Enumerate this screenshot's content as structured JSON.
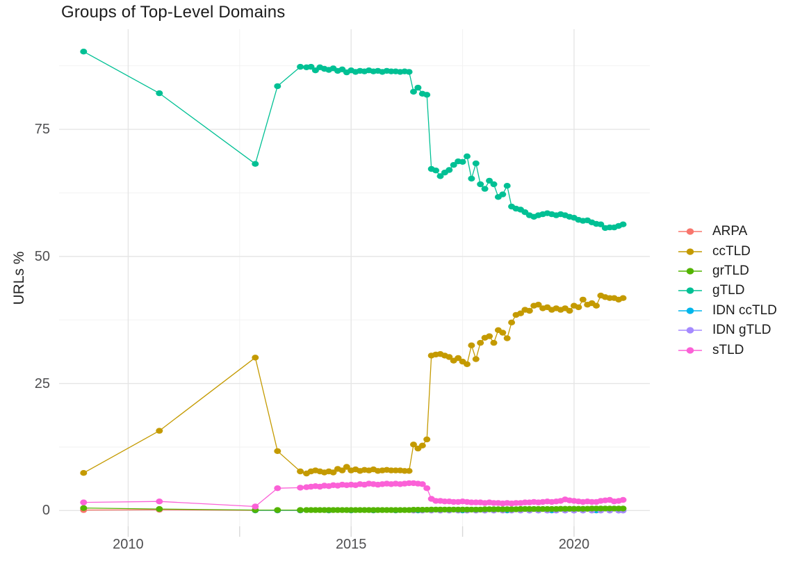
{
  "chart_data": {
    "type": "scatter",
    "title": "Groups of Top-Level Domains",
    "xlabel": "",
    "ylabel": "URLs %",
    "grid": true,
    "legend_position": "right",
    "x_ticks": [
      "2010",
      "2015",
      "2020"
    ],
    "x_tick_values": [
      2010,
      2015,
      2020
    ],
    "x_minor_tick_values": [
      2012.5,
      2017.5
    ],
    "y_ticks": [
      "0",
      "25",
      "50",
      "75"
    ],
    "y_tick_values": [
      0,
      25,
      50,
      75
    ],
    "y_minor_tick_values": [
      12.5,
      37.5,
      62.5,
      87.5
    ],
    "x_range": [
      2008.45,
      2021.7
    ],
    "y_range": [
      -3.1,
      94.7
    ],
    "draw_order": [
      "ARPA",
      "IDN ccTLD",
      "IDN gTLD",
      "ccTLD",
      "grTLD",
      "gTLD",
      "sTLD"
    ],
    "x_dense": [
      2009.0,
      2010.7,
      2012.85,
      2013.35,
      2013.86,
      2014.0,
      2014.1,
      2014.2,
      2014.3,
      2014.4,
      2014.5,
      2014.6,
      2014.7,
      2014.8,
      2014.9,
      2015.0,
      2015.1,
      2015.2,
      2015.3,
      2015.4,
      2015.5,
      2015.6,
      2015.7,
      2015.8,
      2015.9,
      2016.0,
      2016.1,
      2016.2,
      2016.3,
      2016.4,
      2016.5,
      2016.6,
      2016.7,
      2016.8,
      2016.9,
      2017.0,
      2017.1,
      2017.2,
      2017.3,
      2017.4,
      2017.5,
      2017.6,
      2017.7,
      2017.8,
      2017.9,
      2018.0,
      2018.1,
      2018.2,
      2018.3,
      2018.4,
      2018.5,
      2018.6,
      2018.7,
      2018.8,
      2018.9,
      2019.0,
      2019.1,
      2019.2,
      2019.3,
      2019.4,
      2019.5,
      2019.6,
      2019.7,
      2019.8,
      2019.9,
      2020.0,
      2020.1,
      2020.2,
      2020.3,
      2020.4,
      2020.5,
      2020.6,
      2020.7,
      2020.8,
      2020.9,
      2021.0,
      2021.1
    ],
    "series": [
      {
        "name": "ARPA",
        "color": "#F8766D",
        "x": [
          2009.0,
          2010.7,
          2012.85,
          2013.35,
          2013.86,
          2014.5,
          2015.0,
          2015.5,
          2016.0,
          2016.5,
          2017.0,
          2017.5,
          2018.0,
          2018.5,
          2019.0,
          2019.5,
          2020.0,
          2020.5,
          2021.0
        ],
        "y": [
          0.1,
          0.15,
          0.05,
          0.04,
          0.03,
          0.03,
          0.03,
          0.03,
          0.03,
          0.03,
          0.03,
          0.03,
          0.03,
          0.03,
          0.03,
          0.03,
          0.03,
          0.03,
          0.03
        ]
      },
      {
        "name": "ccTLD",
        "color": "#C49A00",
        "x_ref": "x_dense",
        "y": [
          7.4,
          15.7,
          30.1,
          11.7,
          7.7,
          7.3,
          7.7,
          7.9,
          7.7,
          7.5,
          7.7,
          7.5,
          8.2,
          7.9,
          8.6,
          7.9,
          8.1,
          7.8,
          8.0,
          7.9,
          8.1,
          7.8,
          7.9,
          8.0,
          7.9,
          7.9,
          7.9,
          7.8,
          7.8,
          13.0,
          12.2,
          12.8,
          14.0,
          30.5,
          30.7,
          30.8,
          30.5,
          30.2,
          29.5,
          30.0,
          29.3,
          28.8,
          32.5,
          29.8,
          33.0,
          34.0,
          34.3,
          33.0,
          35.5,
          35.0,
          33.9,
          37.0,
          38.5,
          38.8,
          39.5,
          39.3,
          40.3,
          40.5,
          39.8,
          40.0,
          39.5,
          39.8,
          39.5,
          39.8,
          39.3,
          40.3,
          40.0,
          41.5,
          40.5,
          40.8,
          40.3,
          42.3,
          42.0,
          41.8,
          41.8,
          41.5,
          41.8
        ]
      },
      {
        "name": "grTLD",
        "color": "#53B400",
        "x_ref": "x_dense",
        "y": [
          0.5,
          0.3,
          0.1,
          0.1,
          0.1,
          0.1,
          0.1,
          0.1,
          0.1,
          0.1,
          0.1,
          0.1,
          0.1,
          0.1,
          0.1,
          0.1,
          0.1,
          0.1,
          0.1,
          0.1,
          0.1,
          0.1,
          0.1,
          0.1,
          0.1,
          0.1,
          0.1,
          0.1,
          0.1,
          0.15,
          0.15,
          0.15,
          0.15,
          0.2,
          0.2,
          0.2,
          0.2,
          0.2,
          0.2,
          0.2,
          0.2,
          0.2,
          0.2,
          0.2,
          0.2,
          0.25,
          0.25,
          0.25,
          0.25,
          0.25,
          0.25,
          0.25,
          0.25,
          0.3,
          0.3,
          0.3,
          0.3,
          0.3,
          0.3,
          0.3,
          0.3,
          0.3,
          0.35,
          0.35,
          0.35,
          0.35,
          0.35,
          0.35,
          0.35,
          0.4,
          0.4,
          0.4,
          0.4,
          0.4,
          0.4,
          0.4,
          0.4
        ]
      },
      {
        "name": "gTLD",
        "color": "#00C094",
        "x_ref": "x_dense",
        "y": [
          90.3,
          82.1,
          68.2,
          83.5,
          87.3,
          87.2,
          87.3,
          86.6,
          87.2,
          86.9,
          86.7,
          87.0,
          86.5,
          86.8,
          86.2,
          86.6,
          86.3,
          86.5,
          86.4,
          86.6,
          86.4,
          86.5,
          86.3,
          86.5,
          86.4,
          86.4,
          86.3,
          86.4,
          86.3,
          82.4,
          83.2,
          82.0,
          81.8,
          67.2,
          66.9,
          65.8,
          66.5,
          67.0,
          68.0,
          68.7,
          68.6,
          69.7,
          65.3,
          68.3,
          64.2,
          63.3,
          64.9,
          64.2,
          61.7,
          62.2,
          63.9,
          59.8,
          59.4,
          59.2,
          58.7,
          58.1,
          57.8,
          58.1,
          58.3,
          58.5,
          58.3,
          58.1,
          58.3,
          58.1,
          57.8,
          57.6,
          57.2,
          57.0,
          57.1,
          56.7,
          56.4,
          56.3,
          55.6,
          55.7,
          55.7,
          56.0,
          56.3
        ]
      },
      {
        "name": "IDN ccTLD",
        "color": "#00B6EB",
        "x": [
          2012.85,
          2013.35,
          2013.86,
          2014.5,
          2015.0,
          2015.5,
          2016.0,
          2016.5,
          2017.0,
          2017.5,
          2018.0,
          2018.5,
          2019.0,
          2019.5,
          2020.0,
          2020.5,
          2021.0
        ],
        "y": [
          0.05,
          0.05,
          0.05,
          0.05,
          0.05,
          0.05,
          0.05,
          0.05,
          0.05,
          0.05,
          0.05,
          0.05,
          0.05,
          0.05,
          0.05,
          0.05,
          0.05
        ]
      },
      {
        "name": "IDN gTLD",
        "color": "#A58AFF",
        "x": [
          2016.4,
          2016.6,
          2016.8,
          2017.0,
          2017.2,
          2017.4,
          2017.6,
          2017.8,
          2018.0,
          2018.2,
          2018.4,
          2018.6,
          2018.8,
          2019.0,
          2019.2,
          2019.4,
          2019.6,
          2019.8,
          2020.0,
          2020.2,
          2020.4,
          2020.6,
          2020.8,
          2021.0,
          2021.1
        ],
        "y": [
          0.0,
          0.0,
          0.0,
          0.0,
          0.0,
          0.0,
          0.0,
          0.0,
          0.0,
          0.0,
          0.0,
          0.0,
          0.0,
          0.0,
          0.0,
          0.0,
          0.0,
          0.0,
          0.0,
          0.0,
          0.0,
          0.0,
          0.0,
          0.0,
          0.0
        ]
      },
      {
        "name": "sTLD",
        "color": "#FB61D7",
        "x_ref": "x_dense",
        "y": [
          1.6,
          1.8,
          0.8,
          4.4,
          4.5,
          4.6,
          4.7,
          4.8,
          4.7,
          4.9,
          4.8,
          5.0,
          4.9,
          5.1,
          5.0,
          5.1,
          5.0,
          5.2,
          5.1,
          5.3,
          5.2,
          5.1,
          5.2,
          5.3,
          5.2,
          5.3,
          5.2,
          5.3,
          5.4,
          5.4,
          5.3,
          5.2,
          4.4,
          2.3,
          1.9,
          1.9,
          1.8,
          1.8,
          1.7,
          1.7,
          1.8,
          1.7,
          1.6,
          1.6,
          1.6,
          1.5,
          1.6,
          1.5,
          1.5,
          1.4,
          1.5,
          1.4,
          1.5,
          1.5,
          1.6,
          1.6,
          1.7,
          1.6,
          1.7,
          1.8,
          1.7,
          1.8,
          1.9,
          2.2,
          2.0,
          1.9,
          1.8,
          1.7,
          1.8,
          1.7,
          1.7,
          1.9,
          2.0,
          2.1,
          1.8,
          1.9,
          2.1
        ]
      }
    ]
  },
  "colors": {
    "background": "#ffffff",
    "grid_major": "#e5e5e5",
    "grid_minor": "#f2f2f2",
    "axis_tick": "#d8d8d8",
    "axis_text": "#4e4e50",
    "title_text": "#1c1c1c",
    "legend_text": "#1b1b1b"
  }
}
